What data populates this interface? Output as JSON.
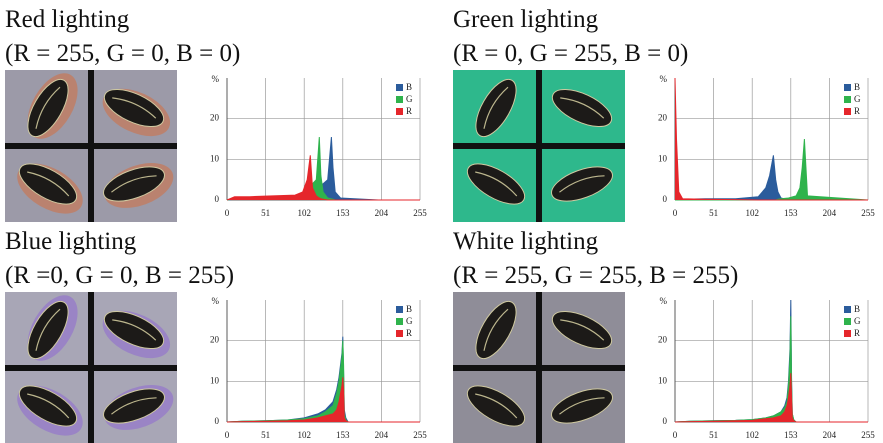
{
  "chart_data": [
    {
      "type": "area",
      "title": "Red lighting",
      "subtitle": "(R = 255, G = 0, B = 0)",
      "y_label": "%",
      "x": [
        0,
        10,
        30,
        60,
        90,
        100,
        106,
        110,
        113,
        118,
        122,
        124,
        127,
        133,
        138,
        140,
        143,
        150,
        200,
        255
      ],
      "series": [
        {
          "name": "B",
          "color": "#2b5c9c",
          "values": [
            0,
            0.2,
            0.3,
            0.5,
            0.8,
            1,
            1.2,
            1.5,
            2,
            2.5,
            3,
            3.5,
            4,
            5,
            15.5,
            8,
            2,
            0.5,
            0,
            0
          ]
        },
        {
          "name": "G",
          "color": "#2fb34c",
          "values": [
            0,
            0.3,
            0.5,
            0.8,
            1,
            1.5,
            2,
            3,
            4,
            5,
            15.5,
            6,
            2,
            0.5,
            0.3,
            0.2,
            0,
            0,
            0,
            0
          ]
        },
        {
          "name": "R",
          "color": "#e5262b",
          "values": [
            0,
            0.8,
            0.8,
            1,
            1.2,
            2,
            5,
            11,
            3,
            1,
            0.5,
            0.3,
            0.2,
            0,
            0,
            0,
            0,
            0,
            0,
            0
          ]
        }
      ],
      "xlim": [
        0,
        255
      ],
      "ylim": [
        0,
        30
      ],
      "xticks": [
        0,
        51,
        102,
        153,
        204,
        255
      ],
      "yticks": [
        0,
        10,
        20
      ],
      "grid": true,
      "legend": "upper right"
    },
    {
      "type": "area",
      "title": "Green lighting",
      "subtitle": "(R = 0, G = 255, B = 0)",
      "y_label": "%",
      "x": [
        0,
        2,
        5,
        10,
        40,
        80,
        110,
        120,
        125,
        130,
        133,
        136,
        140,
        150,
        160,
        165,
        168,
        171,
        175,
        255
      ],
      "series": [
        {
          "name": "B",
          "color": "#2b5c9c",
          "values": [
            0,
            0,
            0,
            0.2,
            0.3,
            0.3,
            0.8,
            3,
            6,
            11,
            5,
            2,
            0.5,
            0,
            0,
            0,
            0,
            0,
            0,
            0
          ]
        },
        {
          "name": "G",
          "color": "#2fb34c",
          "values": [
            0,
            0,
            0,
            0,
            0,
            0,
            0,
            0,
            0,
            0,
            0,
            0.2,
            0.3,
            0.5,
            1,
            3,
            8,
            15,
            1,
            0
          ]
        },
        {
          "name": "R",
          "color": "#e5262b",
          "values": [
            30,
            15,
            2,
            0.3,
            0.2,
            0.1,
            0,
            0,
            0,
            0,
            0,
            0,
            0,
            0,
            0,
            0,
            0,
            0,
            0,
            0
          ]
        }
      ],
      "xlim": [
        0,
        255
      ],
      "ylim": [
        0,
        30
      ],
      "xticks": [
        0,
        51,
        102,
        153,
        204,
        255
      ],
      "yticks": [
        0,
        10,
        20
      ],
      "grid": true,
      "legend": "upper right"
    },
    {
      "type": "area",
      "title": "Blue lighting",
      "subtitle": "(R =0, G = 0, B = 255)",
      "y_label": "%",
      "x": [
        0,
        20,
        51,
        80,
        102,
        120,
        130,
        140,
        145,
        148,
        150,
        152,
        153,
        154,
        155,
        157,
        160,
        255
      ],
      "series": [
        {
          "name": "B",
          "color": "#2b5c9c",
          "values": [
            0,
            0.2,
            0.3,
            0.5,
            1,
            2,
            3,
            5,
            8,
            11,
            14,
            17,
            21,
            12,
            3,
            1,
            0,
            0
          ]
        },
        {
          "name": "G",
          "color": "#2fb34c",
          "values": [
            0,
            0.2,
            0.3,
            0.5,
            0.8,
            1.5,
            2.5,
            4,
            7,
            10,
            13,
            16,
            20,
            14,
            2,
            0.5,
            0,
            0
          ]
        },
        {
          "name": "R",
          "color": "#e5262b",
          "values": [
            0,
            0.1,
            0.2,
            0.3,
            0.5,
            1,
            1.5,
            2,
            3,
            5,
            7,
            9,
            11,
            8,
            1,
            0.3,
            0,
            0
          ]
        }
      ],
      "xlim": [
        0,
        255
      ],
      "ylim": [
        0,
        30
      ],
      "xticks": [
        0,
        51,
        102,
        153,
        204,
        255
      ],
      "yticks": [
        0,
        10,
        20
      ],
      "grid": true,
      "legend": "upper right"
    },
    {
      "type": "area",
      "title": "White lighting",
      "subtitle": "(R = 255, G = 255, B = 255)",
      "y_label": "%",
      "x": [
        0,
        20,
        51,
        80,
        102,
        120,
        130,
        140,
        145,
        148,
        150,
        152,
        153,
        154,
        155,
        157,
        160,
        255
      ],
      "series": [
        {
          "name": "B",
          "color": "#2b5c9c",
          "values": [
            0,
            0.2,
            0.3,
            0.4,
            0.6,
            1,
            1.5,
            2.5,
            4,
            6,
            10,
            18,
            30,
            10,
            2,
            0.5,
            0,
            0
          ]
        },
        {
          "name": "G",
          "color": "#2fb34c",
          "values": [
            0,
            0.2,
            0.3,
            0.4,
            0.6,
            1,
            1.5,
            2.5,
            3.5,
            5,
            9,
            16,
            26,
            9,
            2,
            0.5,
            0,
            0
          ]
        },
        {
          "name": "R",
          "color": "#e5262b",
          "values": [
            0,
            0.1,
            0.2,
            0.3,
            0.4,
            0.8,
            1,
            1.5,
            2.5,
            4,
            6,
            9,
            12,
            6,
            1,
            0.3,
            0,
            0
          ]
        }
      ],
      "xlim": [
        0,
        255
      ],
      "ylim": [
        0,
        30
      ],
      "xticks": [
        0,
        51,
        102,
        153,
        204,
        255
      ],
      "yticks": [
        0,
        10,
        20
      ],
      "grid": true,
      "legend": "upper right"
    }
  ]
}
